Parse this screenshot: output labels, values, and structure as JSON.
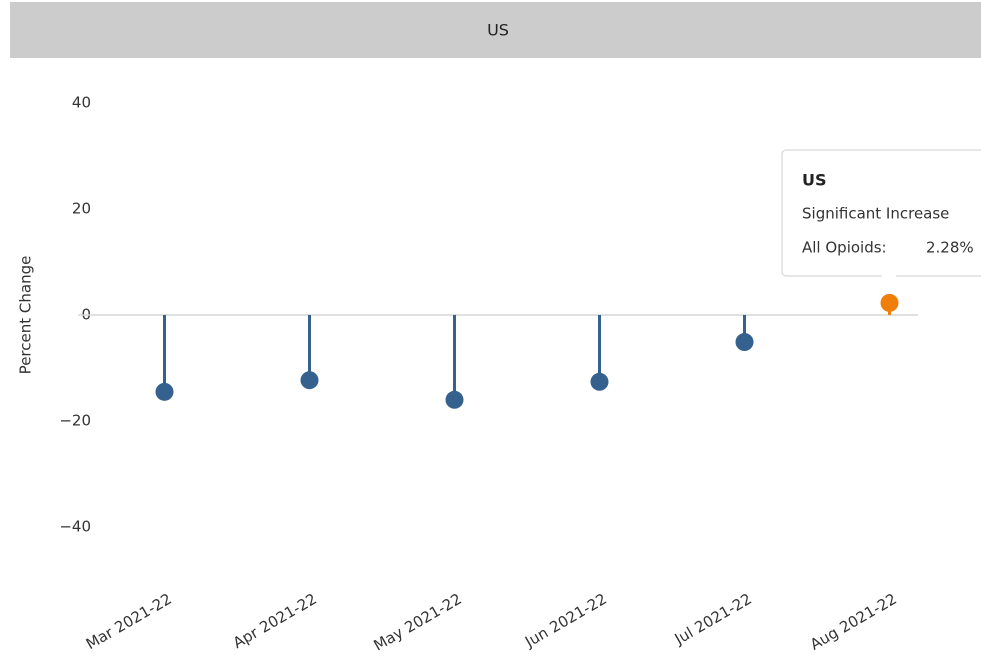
{
  "chart_data": {
    "type": "lollipop",
    "title": "US",
    "y_label": "Percent Change",
    "categories": [
      "Mar 2021-22",
      "Apr 2021-22",
      "May 2021-22",
      "Jun 2021-22",
      "Jul 2021-22",
      "Aug 2021-22"
    ],
    "values": [
      -14.5,
      -12.3,
      -16.0,
      -12.6,
      -5.1,
      2.28
    ],
    "colors": [
      "#34618e",
      "#34618e",
      "#34618e",
      "#34618e",
      "#34618e",
      "#f07f09"
    ],
    "ylim": [
      -45,
      45
    ],
    "yticks": [
      40,
      20,
      0,
      {
        "value": -20,
        "label": "−20"
      },
      {
        "value": -40,
        "label": "−40"
      }
    ],
    "tooltip": {
      "title": "US",
      "status": "Significant Increase",
      "label": "All Opioids:",
      "value_label": "2.28%"
    }
  }
}
